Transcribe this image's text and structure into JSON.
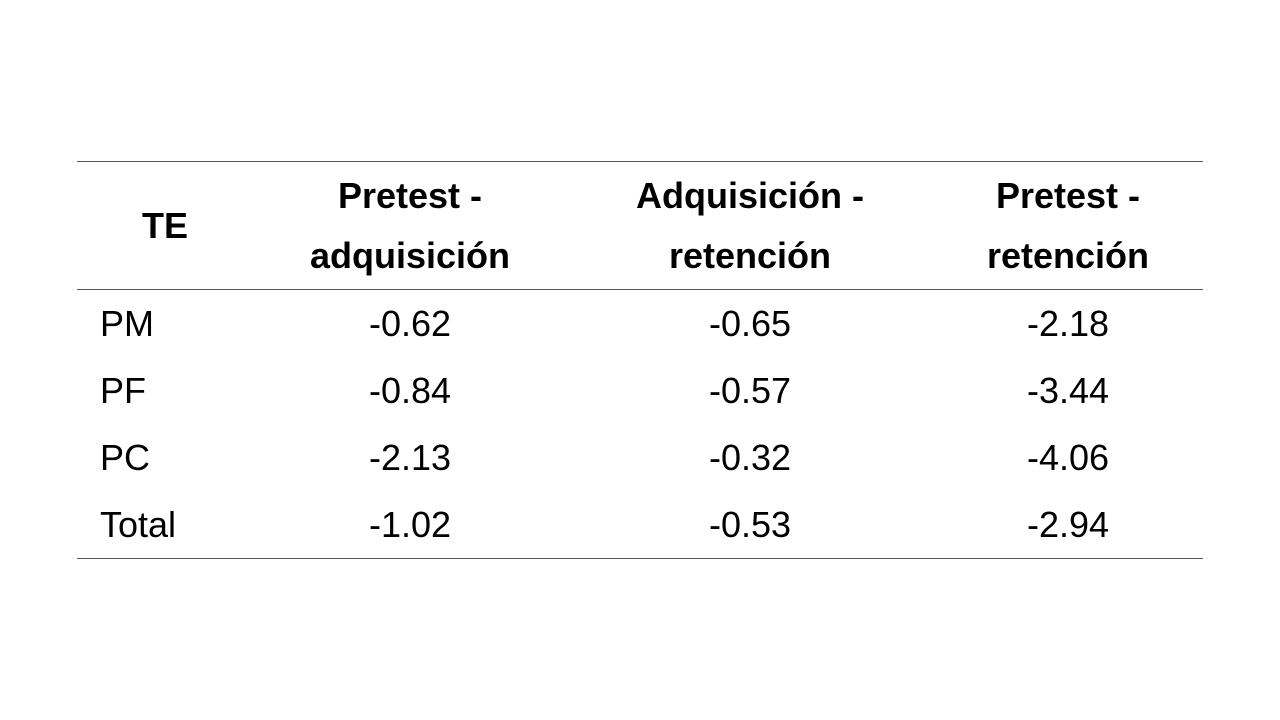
{
  "table": {
    "headers": [
      "TE",
      "Pretest - adquisición",
      "Adquisición - retención",
      "Pretest - retención"
    ],
    "rows": [
      [
        "PM",
        "-0.62",
        "-0.65",
        "-2.18"
      ],
      [
        "PF",
        "-0.84",
        "-0.57",
        "-3.44"
      ],
      [
        "PC",
        "-2.13",
        "-0.32",
        "-4.06"
      ],
      [
        "Total",
        "-1.02",
        "-0.53",
        "-2.94"
      ]
    ]
  }
}
